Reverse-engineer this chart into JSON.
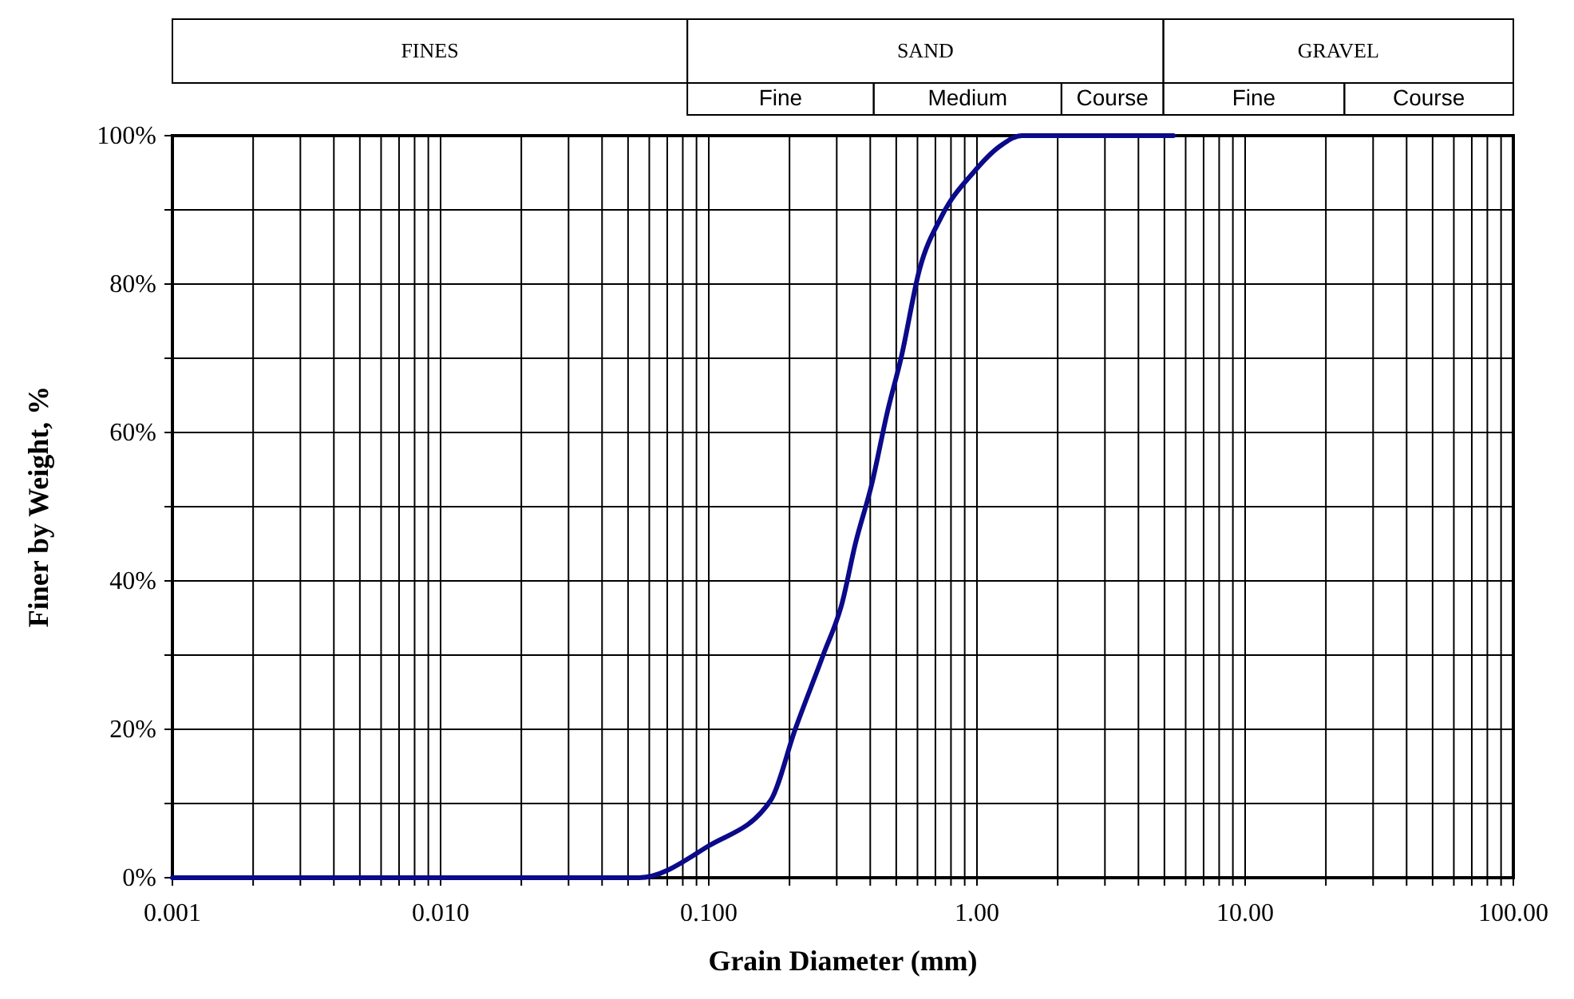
{
  "chart_data": {
    "type": "line",
    "xlabel": "Grain Diameter (mm)",
    "ylabel": "Finer by Weight, %",
    "log": "x",
    "xlim": [
      0.001,
      100
    ],
    "ylim": [
      0,
      100
    ],
    "xticks": [
      {
        "value": 0.001,
        "label": "0.001"
      },
      {
        "value": 0.002,
        "label": null
      },
      {
        "value": 0.003,
        "label": null
      },
      {
        "value": 0.004,
        "label": null
      },
      {
        "value": 0.005,
        "label": null
      },
      {
        "value": 0.006,
        "label": null
      },
      {
        "value": 0.007,
        "label": null
      },
      {
        "value": 0.008,
        "label": null
      },
      {
        "value": 0.009,
        "label": null
      },
      {
        "value": 0.01,
        "label": "0.010"
      },
      {
        "value": 0.02,
        "label": null
      },
      {
        "value": 0.03,
        "label": null
      },
      {
        "value": 0.04,
        "label": null
      },
      {
        "value": 0.05,
        "label": null
      },
      {
        "value": 0.06,
        "label": null
      },
      {
        "value": 0.07,
        "label": null
      },
      {
        "value": 0.08,
        "label": null
      },
      {
        "value": 0.09,
        "label": null
      },
      {
        "value": 0.1,
        "label": "0.100"
      },
      {
        "value": 0.2,
        "label": null
      },
      {
        "value": 0.3,
        "label": null
      },
      {
        "value": 0.4,
        "label": null
      },
      {
        "value": 0.5,
        "label": null
      },
      {
        "value": 0.6,
        "label": null
      },
      {
        "value": 0.7,
        "label": null
      },
      {
        "value": 0.8,
        "label": null
      },
      {
        "value": 0.9,
        "label": null
      },
      {
        "value": 1,
        "label": "1.00"
      },
      {
        "value": 2,
        "label": null
      },
      {
        "value": 3,
        "label": null
      },
      {
        "value": 4,
        "label": null
      },
      {
        "value": 5,
        "label": null
      },
      {
        "value": 6,
        "label": null
      },
      {
        "value": 7,
        "label": null
      },
      {
        "value": 8,
        "label": null
      },
      {
        "value": 9,
        "label": null
      },
      {
        "value": 10,
        "label": "10.00"
      },
      {
        "value": 20,
        "label": null
      },
      {
        "value": 30,
        "label": null
      },
      {
        "value": 40,
        "label": null
      },
      {
        "value": 50,
        "label": null
      },
      {
        "value": 60,
        "label": null
      },
      {
        "value": 70,
        "label": null
      },
      {
        "value": 80,
        "label": null
      },
      {
        "value": 90,
        "label": null
      },
      {
        "value": 100,
        "label": "100.00"
      }
    ],
    "yticks": [
      {
        "value": 0,
        "label": "0%"
      },
      {
        "value": 10,
        "label": null
      },
      {
        "value": 20,
        "label": "20%"
      },
      {
        "value": 30,
        "label": null
      },
      {
        "value": 40,
        "label": "40%"
      },
      {
        "value": 50,
        "label": null
      },
      {
        "value": 60,
        "label": "60%"
      },
      {
        "value": 70,
        "label": null
      },
      {
        "value": 80,
        "label": "80%"
      },
      {
        "value": 90,
        "label": null
      },
      {
        "value": 100,
        "label": "100%"
      }
    ],
    "grid": true,
    "marker": "none",
    "line_style": "solid",
    "annotations": [
      "FINES",
      "SAND",
      "GRAVEL",
      "Fine",
      "Medium",
      "Course",
      "Fine",
      "Course"
    ],
    "series": [
      {
        "color": "#0a0a8a",
        "x": [
          0.001,
          0.055,
          0.1,
          0.17,
          0.21,
          0.267,
          0.314,
          0.352,
          0.405,
          0.465,
          0.521,
          0.611,
          0.735,
          0.968,
          1.22,
          1.47,
          5.4
        ],
        "values": [
          0,
          0,
          4.3,
          10.4,
          20,
          30,
          37,
          45,
          53,
          63,
          70,
          82,
          89,
          95,
          98.6,
          100,
          100
        ]
      }
    ]
  }
}
